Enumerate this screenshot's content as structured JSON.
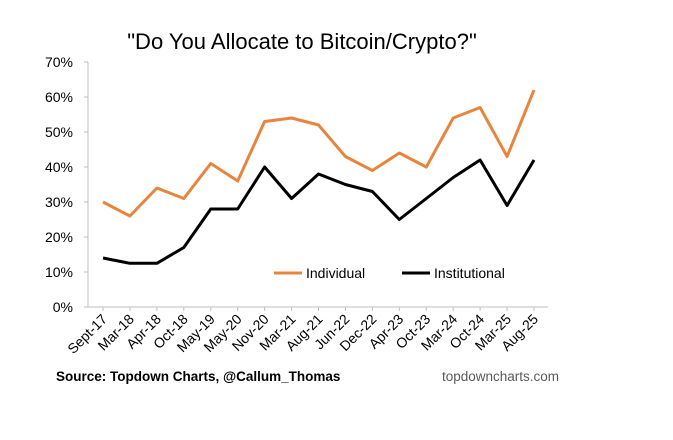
{
  "chart_data": {
    "type": "line",
    "title": "\"Do You Allocate to Bitcoin/Crypto?\"",
    "categories": [
      "Sept-17",
      "Mar-18",
      "Apr-18",
      "Oct-18",
      "May-19",
      "May-20",
      "Nov-20",
      "Mar-21",
      "Aug-21",
      "Jun-22",
      "Dec-22",
      "Apr-23",
      "Oct-23",
      "Mar-24",
      "Oct-24",
      "Mar-25",
      "Aug-25"
    ],
    "y_tick_labels": [
      "0%",
      "10%",
      "20%",
      "30%",
      "40%",
      "50%",
      "60%",
      "70%"
    ],
    "ylim": [
      0,
      70
    ],
    "grid": false,
    "legend_position": "bottom-right inside plot",
    "series": [
      {
        "name": "Individual",
        "color": "#E8853D",
        "values": [
          30,
          26,
          34,
          31,
          41,
          36,
          53,
          54,
          52,
          43,
          39,
          44,
          40,
          54,
          57,
          43,
          62
        ]
      },
      {
        "name": "Institutional",
        "color": "#000000",
        "values": [
          14,
          12.5,
          12.5,
          17,
          28,
          28,
          40,
          31,
          38,
          35,
          33,
          25,
          31,
          37,
          42,
          29,
          42
        ]
      }
    ]
  },
  "footer": {
    "source": "Source: Topdown Charts, @Callum_Thomas",
    "brand": "topdowncharts.com"
  }
}
